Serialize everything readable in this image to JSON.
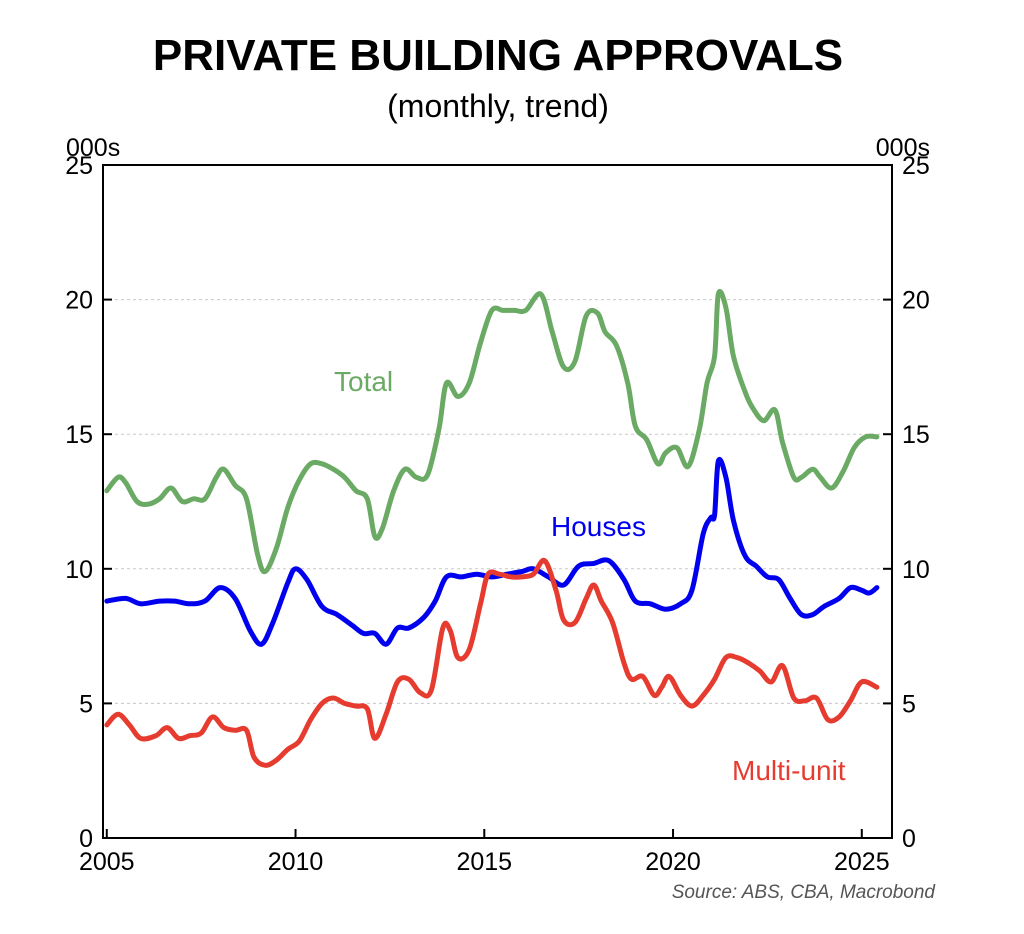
{
  "chart_data": {
    "type": "line",
    "title": "PRIVATE BUILDING APPROVALS",
    "subtitle": "(monthly, trend)",
    "y_unit_left": "000s",
    "y_unit_right": "000s",
    "xlim": [
      2004.9,
      2025.8
    ],
    "ylim": [
      0,
      25
    ],
    "x_ticks": [
      2005,
      2010,
      2015,
      2020,
      2025
    ],
    "y_ticks": [
      0,
      5,
      10,
      15,
      20,
      25
    ],
    "grid": "horizontal dashed",
    "source": "Source: ABS, CBA, Macrobond",
    "series": [
      {
        "name": "Total",
        "color": "#6aaa64",
        "points": [
          [
            2005.0,
            12.9
          ],
          [
            2005.3,
            13.4
          ],
          [
            2005.5,
            13.2
          ],
          [
            2005.8,
            12.5
          ],
          [
            2006.1,
            12.4
          ],
          [
            2006.4,
            12.6
          ],
          [
            2006.7,
            13.0
          ],
          [
            2007.0,
            12.5
          ],
          [
            2007.3,
            12.6
          ],
          [
            2007.6,
            12.6
          ],
          [
            2007.9,
            13.4
          ],
          [
            2008.1,
            13.7
          ],
          [
            2008.4,
            13.1
          ],
          [
            2008.7,
            12.6
          ],
          [
            2009.0,
            10.5
          ],
          [
            2009.2,
            9.9
          ],
          [
            2009.5,
            10.8
          ],
          [
            2009.8,
            12.3
          ],
          [
            2010.1,
            13.3
          ],
          [
            2010.4,
            13.9
          ],
          [
            2010.7,
            13.9
          ],
          [
            2011.0,
            13.7
          ],
          [
            2011.3,
            13.4
          ],
          [
            2011.6,
            12.9
          ],
          [
            2011.9,
            12.6
          ],
          [
            2012.1,
            11.2
          ],
          [
            2012.3,
            11.5
          ],
          [
            2012.6,
            12.9
          ],
          [
            2012.9,
            13.7
          ],
          [
            2013.2,
            13.4
          ],
          [
            2013.5,
            13.5
          ],
          [
            2013.8,
            15.2
          ],
          [
            2014.0,
            16.9
          ],
          [
            2014.3,
            16.4
          ],
          [
            2014.6,
            16.9
          ],
          [
            2014.9,
            18.4
          ],
          [
            2015.2,
            19.6
          ],
          [
            2015.5,
            19.6
          ],
          [
            2015.8,
            19.6
          ],
          [
            2016.1,
            19.6
          ],
          [
            2016.5,
            20.2
          ],
          [
            2016.8,
            18.8
          ],
          [
            2017.1,
            17.5
          ],
          [
            2017.4,
            17.7
          ],
          [
            2017.7,
            19.4
          ],
          [
            2018.0,
            19.5
          ],
          [
            2018.2,
            18.8
          ],
          [
            2018.5,
            18.3
          ],
          [
            2018.8,
            16.9
          ],
          [
            2019.0,
            15.3
          ],
          [
            2019.3,
            14.8
          ],
          [
            2019.6,
            13.9
          ],
          [
            2019.8,
            14.3
          ],
          [
            2020.1,
            14.5
          ],
          [
            2020.4,
            13.8
          ],
          [
            2020.7,
            15.2
          ],
          [
            2020.9,
            16.9
          ],
          [
            2021.1,
            17.9
          ],
          [
            2021.2,
            20.2
          ],
          [
            2021.4,
            19.7
          ],
          [
            2021.6,
            17.9
          ],
          [
            2021.9,
            16.6
          ],
          [
            2022.1,
            16.0
          ],
          [
            2022.4,
            15.5
          ],
          [
            2022.7,
            15.9
          ],
          [
            2022.9,
            14.7
          ],
          [
            2023.2,
            13.4
          ],
          [
            2023.4,
            13.4
          ],
          [
            2023.7,
            13.7
          ],
          [
            2023.9,
            13.4
          ],
          [
            2024.2,
            13.0
          ],
          [
            2024.5,
            13.6
          ],
          [
            2024.8,
            14.5
          ],
          [
            2025.1,
            14.9
          ],
          [
            2025.4,
            14.9
          ]
        ]
      },
      {
        "name": "Houses",
        "color": "#0000ee",
        "points": [
          [
            2005.0,
            8.8
          ],
          [
            2005.5,
            8.9
          ],
          [
            2005.9,
            8.7
          ],
          [
            2006.4,
            8.8
          ],
          [
            2006.8,
            8.8
          ],
          [
            2007.2,
            8.7
          ],
          [
            2007.6,
            8.8
          ],
          [
            2008.0,
            9.3
          ],
          [
            2008.4,
            8.9
          ],
          [
            2008.8,
            7.7
          ],
          [
            2009.1,
            7.2
          ],
          [
            2009.4,
            8.0
          ],
          [
            2009.8,
            9.5
          ],
          [
            2010.0,
            10.0
          ],
          [
            2010.3,
            9.6
          ],
          [
            2010.7,
            8.6
          ],
          [
            2011.1,
            8.3
          ],
          [
            2011.5,
            7.9
          ],
          [
            2011.8,
            7.6
          ],
          [
            2012.1,
            7.6
          ],
          [
            2012.4,
            7.2
          ],
          [
            2012.7,
            7.8
          ],
          [
            2013.0,
            7.8
          ],
          [
            2013.4,
            8.2
          ],
          [
            2013.7,
            8.8
          ],
          [
            2014.0,
            9.7
          ],
          [
            2014.4,
            9.7
          ],
          [
            2014.8,
            9.8
          ],
          [
            2015.2,
            9.7
          ],
          [
            2015.6,
            9.8
          ],
          [
            2016.0,
            9.9
          ],
          [
            2016.3,
            10.0
          ],
          [
            2016.7,
            9.7
          ],
          [
            2017.1,
            9.4
          ],
          [
            2017.5,
            10.1
          ],
          [
            2017.9,
            10.2
          ],
          [
            2018.3,
            10.3
          ],
          [
            2018.7,
            9.6
          ],
          [
            2019.0,
            8.8
          ],
          [
            2019.4,
            8.7
          ],
          [
            2019.8,
            8.5
          ],
          [
            2020.2,
            8.7
          ],
          [
            2020.5,
            9.2
          ],
          [
            2020.8,
            11.3
          ],
          [
            2021.0,
            11.9
          ],
          [
            2021.1,
            12.0
          ],
          [
            2021.2,
            14.0
          ],
          [
            2021.4,
            13.4
          ],
          [
            2021.6,
            11.8
          ],
          [
            2021.9,
            10.5
          ],
          [
            2022.2,
            10.1
          ],
          [
            2022.5,
            9.7
          ],
          [
            2022.8,
            9.6
          ],
          [
            2023.1,
            8.9
          ],
          [
            2023.4,
            8.3
          ],
          [
            2023.7,
            8.3
          ],
          [
            2024.0,
            8.6
          ],
          [
            2024.4,
            8.9
          ],
          [
            2024.7,
            9.3
          ],
          [
            2025.0,
            9.2
          ],
          [
            2025.2,
            9.1
          ],
          [
            2025.4,
            9.3
          ]
        ]
      },
      {
        "name": "Multi-unit",
        "color": "#e63c30",
        "points": [
          [
            2005.0,
            4.2
          ],
          [
            2005.3,
            4.6
          ],
          [
            2005.6,
            4.2
          ],
          [
            2005.9,
            3.7
          ],
          [
            2006.3,
            3.8
          ],
          [
            2006.6,
            4.1
          ],
          [
            2006.9,
            3.7
          ],
          [
            2007.2,
            3.8
          ],
          [
            2007.5,
            3.9
          ],
          [
            2007.8,
            4.5
          ],
          [
            2008.1,
            4.1
          ],
          [
            2008.4,
            4.0
          ],
          [
            2008.7,
            4.0
          ],
          [
            2008.9,
            3.0
          ],
          [
            2009.2,
            2.7
          ],
          [
            2009.5,
            2.9
          ],
          [
            2009.8,
            3.3
          ],
          [
            2010.1,
            3.6
          ],
          [
            2010.4,
            4.4
          ],
          [
            2010.7,
            5.0
          ],
          [
            2011.0,
            5.2
          ],
          [
            2011.3,
            5.0
          ],
          [
            2011.6,
            4.9
          ],
          [
            2011.9,
            4.8
          ],
          [
            2012.1,
            3.7
          ],
          [
            2012.4,
            4.6
          ],
          [
            2012.7,
            5.8
          ],
          [
            2013.0,
            5.9
          ],
          [
            2013.3,
            5.4
          ],
          [
            2013.6,
            5.5
          ],
          [
            2013.9,
            7.8
          ],
          [
            2014.1,
            7.7
          ],
          [
            2014.3,
            6.7
          ],
          [
            2014.6,
            7.0
          ],
          [
            2014.9,
            8.7
          ],
          [
            2015.1,
            9.8
          ],
          [
            2015.4,
            9.8
          ],
          [
            2015.7,
            9.7
          ],
          [
            2016.0,
            9.7
          ],
          [
            2016.3,
            9.8
          ],
          [
            2016.6,
            10.3
          ],
          [
            2016.9,
            9.2
          ],
          [
            2017.1,
            8.1
          ],
          [
            2017.4,
            8.0
          ],
          [
            2017.7,
            8.9
          ],
          [
            2017.9,
            9.4
          ],
          [
            2018.1,
            8.8
          ],
          [
            2018.4,
            8.0
          ],
          [
            2018.7,
            6.5
          ],
          [
            2018.9,
            5.9
          ],
          [
            2019.2,
            6.0
          ],
          [
            2019.5,
            5.3
          ],
          [
            2019.7,
            5.6
          ],
          [
            2019.9,
            6.0
          ],
          [
            2020.2,
            5.3
          ],
          [
            2020.5,
            4.9
          ],
          [
            2020.8,
            5.3
          ],
          [
            2021.1,
            5.9
          ],
          [
            2021.4,
            6.7
          ],
          [
            2021.7,
            6.7
          ],
          [
            2022.0,
            6.5
          ],
          [
            2022.3,
            6.2
          ],
          [
            2022.6,
            5.8
          ],
          [
            2022.9,
            6.4
          ],
          [
            2023.2,
            5.2
          ],
          [
            2023.5,
            5.1
          ],
          [
            2023.8,
            5.2
          ],
          [
            2024.1,
            4.4
          ],
          [
            2024.4,
            4.5
          ],
          [
            2024.7,
            5.1
          ],
          [
            2025.0,
            5.8
          ],
          [
            2025.4,
            5.6
          ]
        ]
      }
    ],
    "labels": [
      {
        "text": "Total",
        "series": "Total"
      },
      {
        "text": "Houses",
        "series": "Houses"
      },
      {
        "text": "Multi-unit",
        "series": "Multi-unit"
      }
    ]
  }
}
